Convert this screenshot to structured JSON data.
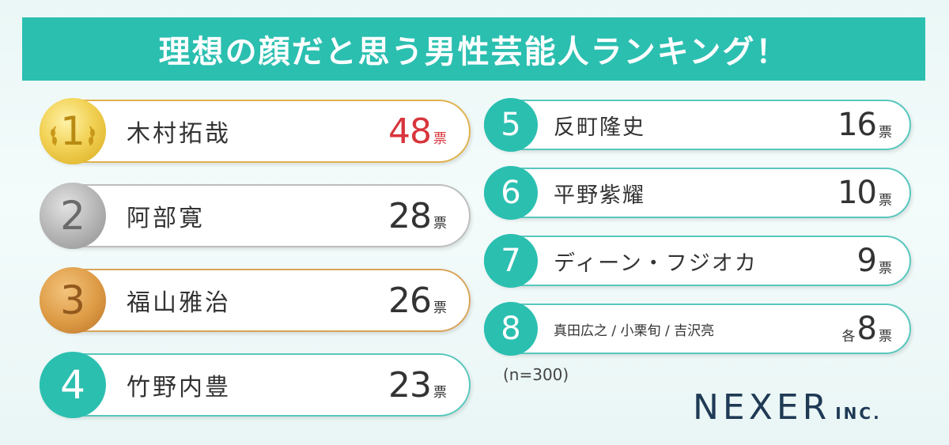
{
  "title": "理想の顔だと思う男性芸能人ランキング！",
  "sample_note": "(n=300)",
  "brand": {
    "name": "NEXER",
    "suffix": "INC."
  },
  "vote_unit": "票",
  "each_label": "各",
  "colors": {
    "banner": "#2bbfb0",
    "teal": "#2bbfb0",
    "highlight_red": "#d8353c",
    "gold": "#e0b24c",
    "silver": "#bdbdbd",
    "bronze": "#d8a45a"
  },
  "chart_data": {
    "type": "table",
    "title": "理想の顔だと思う男性芸能人ランキング！",
    "columns": [
      "rank",
      "name",
      "votes"
    ],
    "rows": [
      {
        "rank": "1",
        "name": "木村拓哉",
        "votes": "48"
      },
      {
        "rank": "2",
        "name": "阿部寛",
        "votes": "28"
      },
      {
        "rank": "3",
        "name": "福山雅治",
        "votes": "26"
      },
      {
        "rank": "4",
        "name": "竹野内豊",
        "votes": "23"
      },
      {
        "rank": "5",
        "name": "反町隆史",
        "votes": "16"
      },
      {
        "rank": "6",
        "name": "平野紫耀",
        "votes": "10"
      },
      {
        "rank": "7",
        "name": "ディーン・フジオカ",
        "votes": "9"
      },
      {
        "rank": "8",
        "name": "真田広之 / 小栗旬 / 吉沢亮",
        "votes": "8"
      }
    ]
  }
}
